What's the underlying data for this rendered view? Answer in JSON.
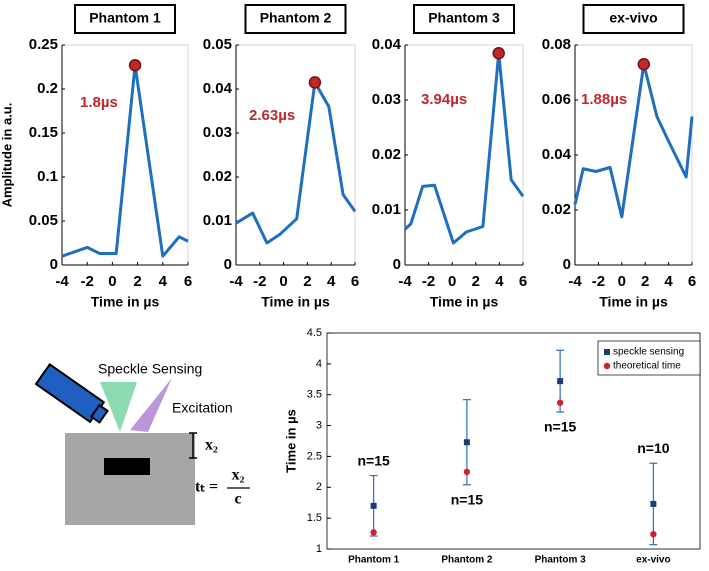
{
  "chart_data": [
    {
      "type": "line",
      "title": "Phantom 1",
      "ylabel": "Amplitude in a.u.",
      "xlabel": "Time in µs",
      "x": [
        -4,
        -2,
        -1,
        0.3,
        1.8,
        4,
        5.3,
        6
      ],
      "values": [
        0.01,
        0.02,
        0.013,
        0.013,
        0.227,
        0.01,
        0.032,
        0.027
      ],
      "color": "#1f6fbf",
      "xlim": [
        -4,
        6
      ],
      "xticks": [
        -4,
        -2,
        0,
        2,
        4,
        6
      ],
      "ylim": [
        0,
        0.25
      ],
      "yticks": [
        0,
        0.05,
        0.1,
        0.15,
        0.2,
        0.25
      ],
      "peak": {
        "x": 1.8,
        "y": 0.227,
        "label": "1.8µs",
        "color": "#c0282a"
      }
    },
    {
      "type": "line",
      "title": "Phantom 2",
      "xlabel": "Time in µs",
      "x": [
        -4,
        -2.6,
        -1.4,
        -0.3,
        1.1,
        2.63,
        3.8,
        5,
        6
      ],
      "values": [
        0.0095,
        0.0118,
        0.005,
        0.007,
        0.0105,
        0.0415,
        0.036,
        0.016,
        0.0122
      ],
      "color": "#1f6fbf",
      "xlim": [
        -4,
        6
      ],
      "xticks": [
        -4,
        -2,
        0,
        2,
        4,
        6
      ],
      "ylim": [
        0,
        0.05
      ],
      "yticks": [
        0,
        0.01,
        0.02,
        0.03,
        0.04,
        0.05
      ],
      "peak": {
        "x": 2.63,
        "y": 0.0415,
        "label": "2.63µs",
        "color": "#c0282a"
      }
    },
    {
      "type": "line",
      "title": "Phantom 3",
      "xlabel": "Time in µs",
      "x": [
        -4,
        -3.5,
        -2.5,
        -1.5,
        0.1,
        1.2,
        2.6,
        3.94,
        5,
        6
      ],
      "values": [
        0.0065,
        0.0075,
        0.0143,
        0.0145,
        0.004,
        0.006,
        0.007,
        0.0385,
        0.0155,
        0.0125
      ],
      "color": "#1f6fbf",
      "xlim": [
        -4,
        6
      ],
      "xticks": [
        -4,
        -2,
        0,
        2,
        4,
        6
      ],
      "ylim": [
        0,
        0.04
      ],
      "yticks": [
        0,
        0.01,
        0.02,
        0.03,
        0.04
      ],
      "peak": {
        "x": 3.94,
        "y": 0.0385,
        "label": "3.94µs",
        "color": "#c0282a"
      }
    },
    {
      "type": "line",
      "title": "ex-vivo",
      "xlabel": "Time in µs",
      "x": [
        -4,
        -3.3,
        -2.2,
        -1,
        0,
        1.88,
        3,
        4,
        5.5,
        6
      ],
      "values": [
        0.022,
        0.035,
        0.034,
        0.0355,
        0.0175,
        0.073,
        0.054,
        0.045,
        0.032,
        0.054
      ],
      "color": "#1f6fbf",
      "xlim": [
        -4,
        6
      ],
      "xticks": [
        -4,
        -2,
        0,
        2,
        4,
        6
      ],
      "ylim": [
        0,
        0.08
      ],
      "yticks": [
        0,
        0.02,
        0.04,
        0.06,
        0.08
      ],
      "peak": {
        "x": 1.88,
        "y": 0.073,
        "label": "1.88µs",
        "color": "#c0282a"
      }
    },
    {
      "type": "errorbar",
      "ylabel": "Time in µs",
      "categories": [
        "Phantom 1",
        "Phantom 2",
        "Phantom 3",
        "ex-vivo"
      ],
      "ylim": [
        1,
        4.5
      ],
      "yticks": [
        1,
        1.5,
        2,
        2.5,
        3,
        3.5,
        4,
        4.5
      ],
      "series": [
        {
          "name": "speckle sensing",
          "color": "#1a3d7a",
          "values": [
            1.7,
            2.73,
            3.72,
            1.73
          ],
          "errors": [
            0.49,
            0.69,
            0.5,
            0.66
          ]
        },
        {
          "name": "theoretical time",
          "color": "#d02030",
          "values": [
            1.27,
            2.25,
            3.37,
            1.24
          ]
        }
      ],
      "annotations": [
        "n=15",
        "n=15",
        "n=15",
        "n=10"
      ]
    }
  ],
  "diagram": {
    "sensor_label": "Speckle Sensing",
    "excitation_label": "Excitation",
    "depth_label": "x₂",
    "formula": {
      "lhs": "tₜ =",
      "numerator": "x₂",
      "denominator": "c"
    }
  }
}
